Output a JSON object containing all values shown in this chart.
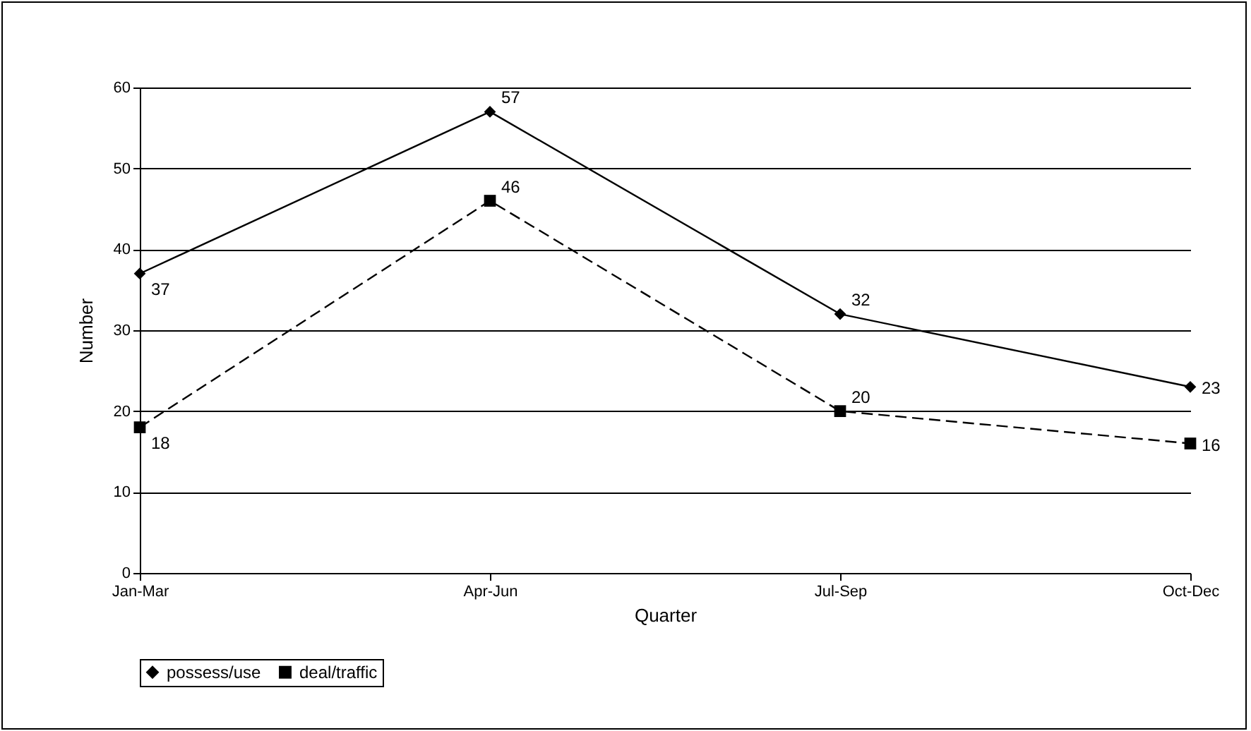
{
  "chart_data": {
    "type": "line",
    "xlabel": "Quarter",
    "ylabel": "Number",
    "categories": [
      "Jan-Mar",
      "Apr-Jun",
      "Jul-Sep",
      "Oct-Dec"
    ],
    "series": [
      {
        "name": "possess/use",
        "color": "#000000",
        "values": [
          37,
          57,
          32,
          23
        ],
        "marker": "diamond",
        "line_style": "solid"
      },
      {
        "name": "deal/traffic",
        "color": "#000000",
        "values": [
          18,
          46,
          20,
          16
        ],
        "marker": "square",
        "line_style": "dashed"
      }
    ],
    "ylim": [
      0,
      60
    ],
    "yticks": [
      0,
      10,
      20,
      30,
      40,
      50,
      60
    ],
    "grid": "y",
    "legend": "bottom",
    "data_labels": true
  }
}
